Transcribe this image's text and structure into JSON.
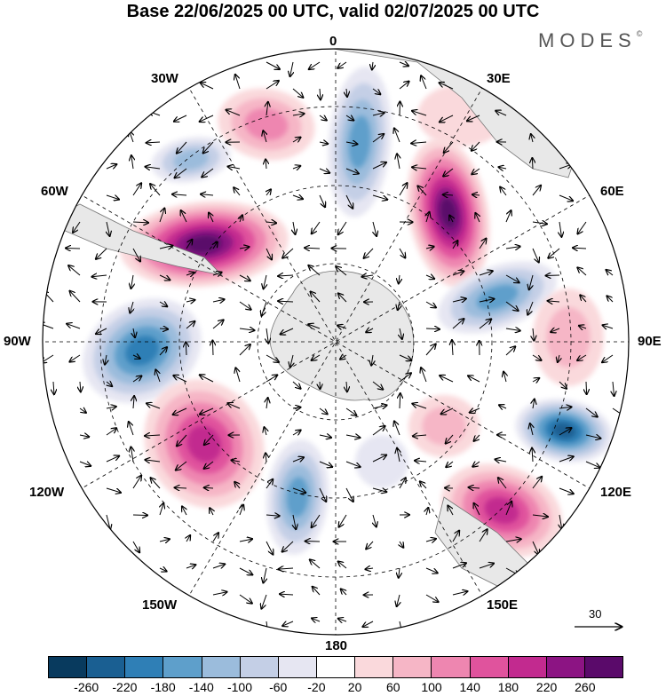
{
  "header": {
    "title": "Base 22/06/2025 00 UTC, valid 02/07/2025 00 UTC",
    "brand": "MODES",
    "brand_mark": "©"
  },
  "map": {
    "projection": "south-polar-stereographic",
    "longitude_labels": {
      "top": "0",
      "top_right": "30E",
      "right_upper": "60E",
      "right": "90E",
      "right_lower": "120E",
      "bottom_right": "150E",
      "bottom": "180",
      "bottom_left": "150W",
      "left_lower": "120W",
      "left": "90W",
      "left_upper": "60W",
      "top_left": "30W"
    },
    "reference_vector": "30"
  },
  "colorbar": {
    "colors": [
      "#083a5e",
      "#1a5f92",
      "#2f7fb6",
      "#5e9fcb",
      "#9bbcdc",
      "#c4cfe6",
      "#e6e6f2",
      "#ffffff",
      "#fad9dc",
      "#f6b6c6",
      "#ee86b0",
      "#e0539d",
      "#c22a8f",
      "#8c1483",
      "#5a0a6a"
    ],
    "tick_labels": [
      "-260",
      "-220",
      "-180",
      "-140",
      "-100",
      "-60",
      "-20",
      "20",
      "60",
      "100",
      "140",
      "180",
      "220",
      "260"
    ]
  }
}
